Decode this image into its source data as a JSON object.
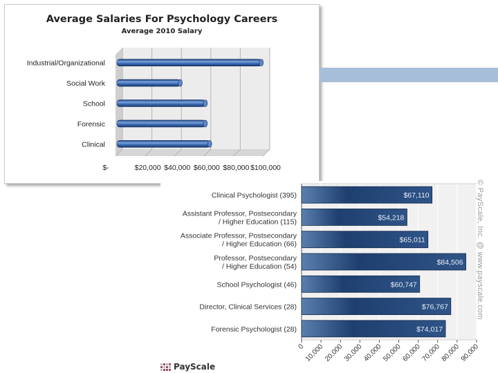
{
  "chart_data": [
    {
      "type": "bar",
      "orientation": "horizontal",
      "title": "Average Salaries For Psychology Careers",
      "subtitle": "Average 2010 Salary",
      "categories": [
        "Industrial/Organizational",
        "Social Work",
        "School",
        "Forensic",
        "Clinical"
      ],
      "values": [
        98000,
        43000,
        60000,
        60000,
        63000
      ],
      "xlim": [
        0,
        100000
      ],
      "tick_labels": [
        "$-",
        "$20,000",
        "$40,000",
        "$60,000",
        "$80,000",
        "$100,000"
      ],
      "grid": true,
      "style": "3d-cylinder",
      "bar_color": "#3f6fb6"
    },
    {
      "type": "bar",
      "orientation": "horizontal",
      "categories": [
        "Clinical Psychologist (395)",
        "Assistant Professor, Postsecondary / Higher Education (115)",
        "Associate Professor, Postsecondary / Higher Education (66)",
        "Professor, Postsecondary / Higher Education (54)",
        "School Psychologist (46)",
        "Director, Clinical Services (28)",
        "Forensic Psychologist (28)"
      ],
      "values": [
        67110,
        54218,
        65011,
        84506,
        60747,
        76767,
        74017
      ],
      "value_labels": [
        "$67,110",
        "$54,218",
        "$65,011",
        "$84,506",
        "$60,747",
        "$76,767",
        "$74,017"
      ],
      "xlim": [
        0,
        90000
      ],
      "tick_labels": [
        "0",
        "10,000",
        "20,000",
        "30,000",
        "40,000",
        "50,000",
        "60,000",
        "70,000",
        "80,000",
        "90,000"
      ],
      "grid": true,
      "bar_color": "#1f4170",
      "watermark": "© PayScale, Inc. @ www.payscale.com"
    }
  ],
  "logo": {
    "text": "PayScale"
  },
  "colors": {
    "accent_rule": "#a7bed8"
  }
}
